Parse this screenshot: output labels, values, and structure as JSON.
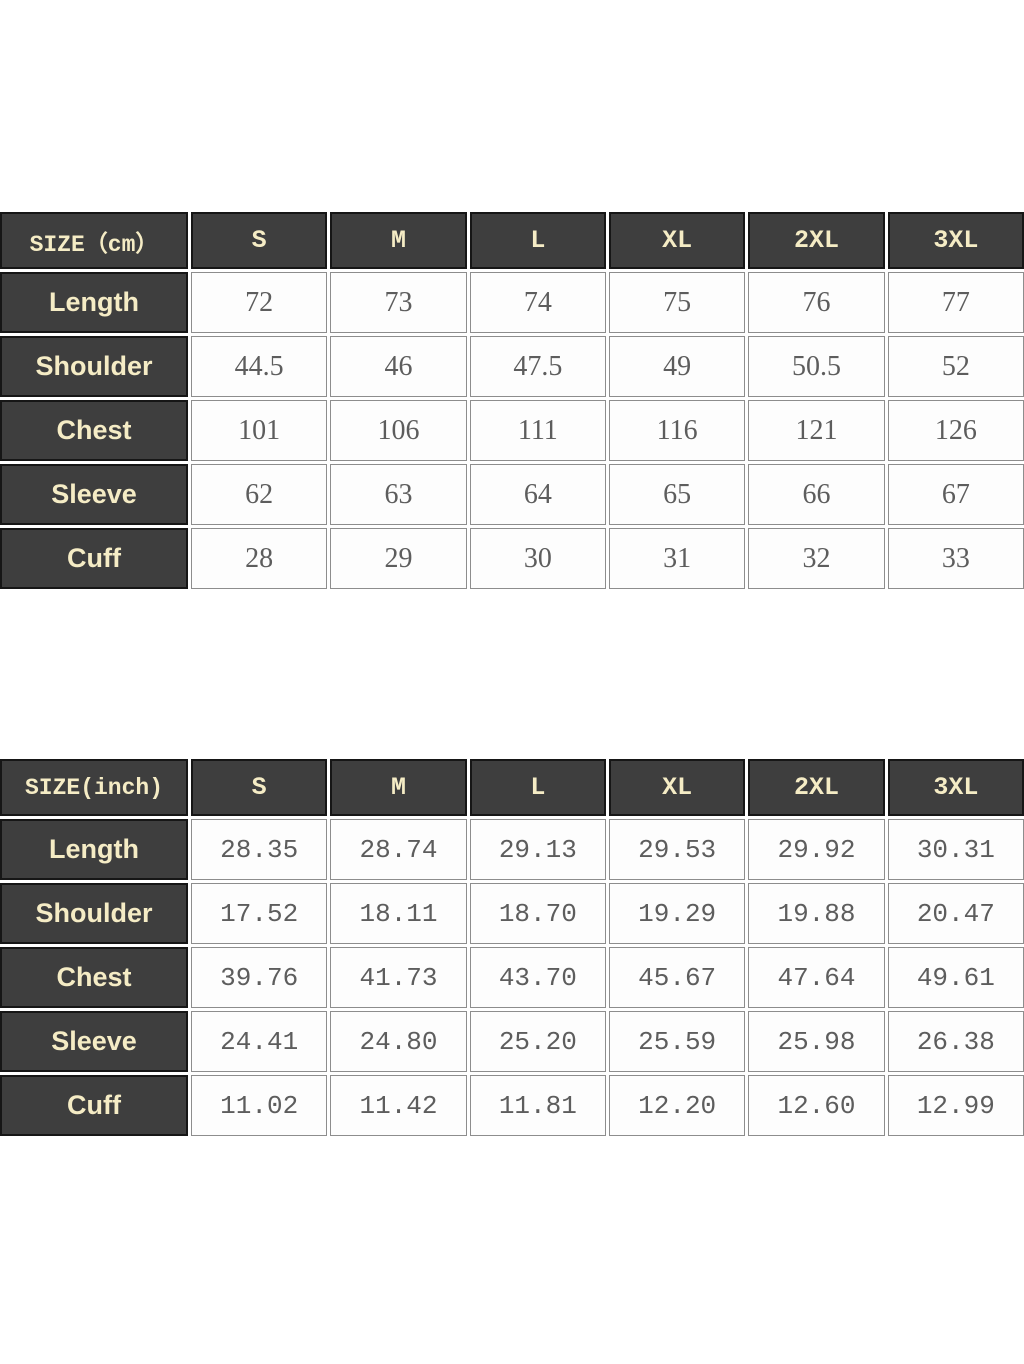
{
  "colors": {
    "page_background": "#ffffff",
    "header_cell_background": "#3e3e3e",
    "header_cell_text": "#f5ecc5",
    "header_cell_border": "#161616",
    "value_cell_background": "#fdfdfd",
    "value_cell_text": "#5d5d5d",
    "grid_line": "#8d8d8d"
  },
  "chart_data": [
    {
      "type": "table",
      "title": "SIZE（cm）",
      "unit": "cm",
      "columns": [
        "S",
        "M",
        "L",
        "XL",
        "2XL",
        "3XL"
      ],
      "rows": [
        {
          "label": "Length",
          "values": [
            "72",
            "73",
            "74",
            "75",
            "76",
            "77"
          ]
        },
        {
          "label": "Shoulder",
          "values": [
            "44.5",
            "46",
            "47.5",
            "49",
            "50.5",
            "52"
          ]
        },
        {
          "label": "Chest",
          "values": [
            "101",
            "106",
            "111",
            "116",
            "121",
            "126"
          ]
        },
        {
          "label": "Sleeve",
          "values": [
            "62",
            "63",
            "64",
            "65",
            "66",
            "67"
          ]
        },
        {
          "label": "Cuff",
          "values": [
            "28",
            "29",
            "30",
            "31",
            "32",
            "33"
          ]
        }
      ]
    },
    {
      "type": "table",
      "title": "SIZE(inch)",
      "unit": "inch",
      "columns": [
        "S",
        "M",
        "L",
        "XL",
        "2XL",
        "3XL"
      ],
      "rows": [
        {
          "label": "Length",
          "values": [
            "28.35",
            "28.74",
            "29.13",
            "29.53",
            "29.92",
            "30.31"
          ]
        },
        {
          "label": "Shoulder",
          "values": [
            "17.52",
            "18.11",
            "18.70",
            "19.29",
            "19.88",
            "20.47"
          ]
        },
        {
          "label": "Chest",
          "values": [
            "39.76",
            "41.73",
            "43.70",
            "45.67",
            "47.64",
            "49.61"
          ]
        },
        {
          "label": "Sleeve",
          "values": [
            "24.41",
            "24.80",
            "25.20",
            "25.59",
            "25.98",
            "26.38"
          ]
        },
        {
          "label": "Cuff",
          "values": [
            "11.02",
            "11.42",
            "11.81",
            "12.20",
            "12.60",
            "12.99"
          ]
        }
      ]
    }
  ]
}
